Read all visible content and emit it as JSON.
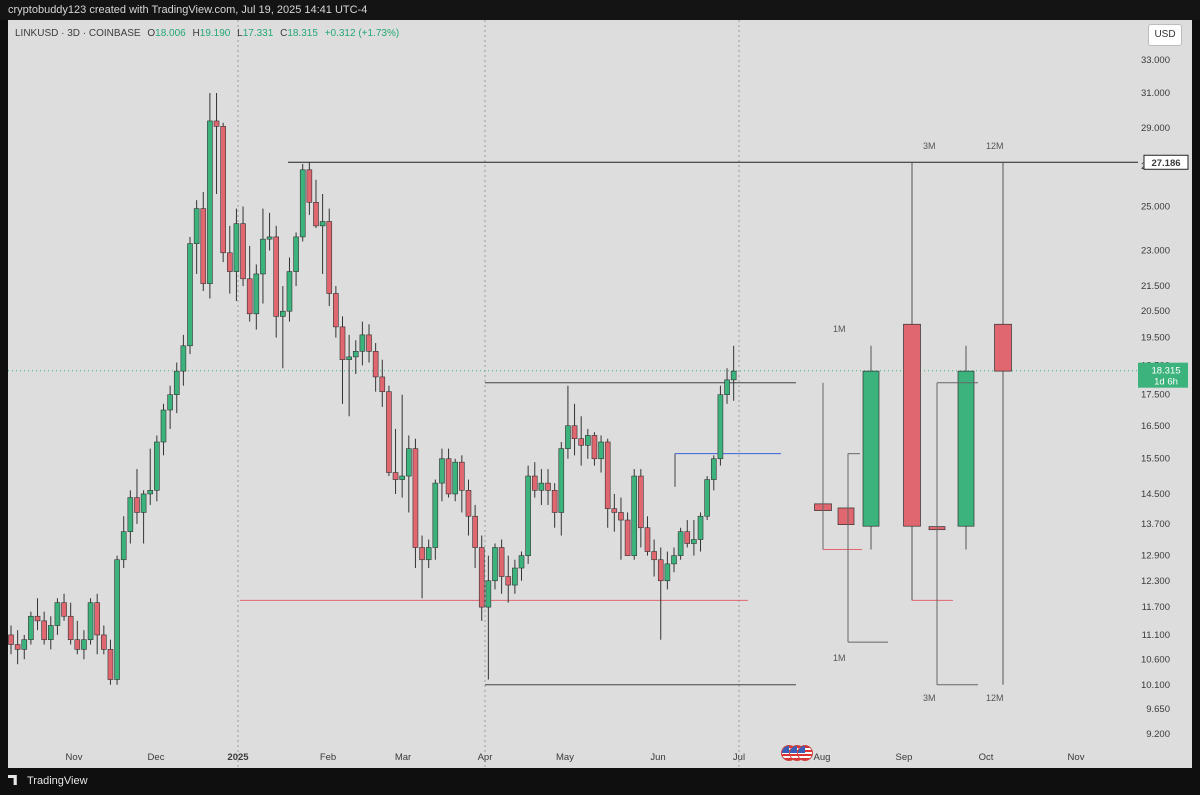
{
  "header": {
    "attribution": "cryptobuddy123 created with TradingView.com, Jul 19, 2025 14:41 UTC-4"
  },
  "legend": {
    "symbol": "LINKUSD · 3D · COINBASE",
    "open_label": "O",
    "open": "18.006",
    "high_label": "H",
    "high": "19.190",
    "low_label": "L",
    "low": "17.331",
    "close_label": "C",
    "close": "18.315",
    "change": "+0.312 (+1.73%)"
  },
  "currency_button": "USD",
  "footer": {
    "brand": "TradingView"
  },
  "colors": {
    "up": "#3cb37d",
    "down": "#e0666f",
    "background": "#dddddd",
    "price_tag": "#3cb37d",
    "resistance_tag": "#ffffff"
  },
  "chart_data": {
    "type": "candlestick",
    "symbol": "LINKUSD",
    "timeframe": "3D",
    "exchange": "COINBASE",
    "y_axis": {
      "scale": "log",
      "ticks": [
        "33.000",
        "31.000",
        "29.000",
        "27.000",
        "25.000",
        "23.000",
        "21.500",
        "20.500",
        "19.500",
        "18.500",
        "17.500",
        "16.500",
        "15.500",
        "14.500",
        "13.700",
        "12.900",
        "12.300",
        "11.700",
        "11.100",
        "10.600",
        "10.100",
        "9.650",
        "9.200"
      ]
    },
    "x_axis": {
      "ticks": [
        "Nov",
        "Dec",
        "2025",
        "Feb",
        "Mar",
        "Apr",
        "May",
        "Jun",
        "Jul",
        "Aug",
        "Sep",
        "Oct",
        "Nov"
      ]
    },
    "price_labels": [
      {
        "value": "27.186",
        "style": "resistance"
      },
      {
        "value": "18.315",
        "style": "last-price"
      }
    ],
    "countdown": "1d 6h",
    "annotations": [
      "1M",
      "1M",
      "3M",
      "3M",
      "12M",
      "12M"
    ],
    "candles": [
      [
        11.1,
        11.3,
        10.7,
        10.9
      ],
      [
        10.9,
        11.2,
        10.5,
        10.8
      ],
      [
        10.8,
        11.1,
        10.6,
        11.0
      ],
      [
        11.0,
        11.6,
        10.9,
        11.5
      ],
      [
        11.5,
        11.9,
        11.2,
        11.4
      ],
      [
        11.4,
        11.6,
        10.9,
        11.0
      ],
      [
        11.0,
        11.5,
        10.8,
        11.3
      ],
      [
        11.3,
        11.9,
        11.1,
        11.8
      ],
      [
        11.8,
        12.0,
        11.4,
        11.5
      ],
      [
        11.5,
        11.8,
        10.9,
        11.0
      ],
      [
        11.0,
        11.4,
        10.7,
        10.8
      ],
      [
        10.8,
        11.2,
        10.6,
        11.0
      ],
      [
        11.0,
        11.9,
        10.9,
        11.8
      ],
      [
        11.8,
        12.0,
        10.7,
        11.1
      ],
      [
        11.1,
        11.3,
        10.7,
        10.8
      ],
      [
        10.8,
        11.0,
        10.1,
        10.2
      ],
      [
        10.2,
        12.9,
        10.1,
        12.8
      ],
      [
        12.8,
        13.9,
        12.6,
        13.5
      ],
      [
        13.5,
        14.6,
        13.2,
        14.4
      ],
      [
        14.4,
        15.2,
        13.7,
        14.0
      ],
      [
        14.0,
        14.6,
        13.2,
        14.5
      ],
      [
        14.5,
        15.8,
        14.2,
        14.6
      ],
      [
        14.6,
        16.2,
        14.3,
        16.0
      ],
      [
        16.0,
        17.2,
        15.6,
        17.0
      ],
      [
        17.0,
        17.8,
        16.4,
        17.5
      ],
      [
        17.5,
        18.6,
        16.9,
        18.3
      ],
      [
        18.3,
        19.6,
        17.8,
        19.2
      ],
      [
        19.2,
        23.6,
        18.9,
        23.3
      ],
      [
        23.3,
        25.3,
        22.0,
        24.9
      ],
      [
        24.9,
        25.7,
        21.3,
        21.6
      ],
      [
        21.6,
        31.0,
        21.0,
        29.4
      ],
      [
        29.4,
        31.0,
        25.6,
        29.1
      ],
      [
        29.1,
        29.3,
        22.5,
        22.9
      ],
      [
        22.9,
        24.1,
        21.2,
        22.1
      ],
      [
        22.1,
        24.9,
        20.9,
        24.2
      ],
      [
        24.2,
        25.0,
        21.5,
        21.8
      ],
      [
        21.8,
        23.2,
        20.1,
        20.4
      ],
      [
        20.4,
        22.4,
        19.8,
        22.0
      ],
      [
        22.0,
        24.9,
        20.8,
        23.5
      ],
      [
        23.5,
        24.7,
        23.0,
        23.6
      ],
      [
        23.6,
        24.1,
        19.5,
        20.3
      ],
      [
        20.3,
        21.5,
        18.4,
        20.5
      ],
      [
        20.5,
        22.7,
        20.1,
        22.1
      ],
      [
        22.1,
        23.8,
        21.5,
        23.6
      ],
      [
        23.6,
        27.1,
        23.4,
        26.8
      ],
      [
        26.8,
        27.2,
        24.6,
        25.2
      ],
      [
        25.2,
        26.3,
        24.0,
        24.1
      ],
      [
        24.1,
        25.6,
        22.0,
        24.3
      ],
      [
        24.3,
        24.9,
        20.7,
        21.2
      ],
      [
        21.2,
        21.5,
        19.5,
        19.9
      ],
      [
        19.9,
        20.3,
        17.2,
        18.7
      ],
      [
        18.7,
        19.6,
        16.8,
        18.8
      ],
      [
        18.8,
        19.4,
        18.2,
        19.0
      ],
      [
        19.0,
        20.1,
        18.5,
        19.6
      ],
      [
        19.6,
        20.0,
        18.6,
        19.0
      ],
      [
        19.0,
        19.3,
        17.6,
        18.1
      ],
      [
        18.1,
        18.7,
        17.1,
        17.6
      ],
      [
        17.6,
        17.8,
        15.0,
        15.1
      ],
      [
        15.1,
        16.4,
        14.5,
        14.9
      ],
      [
        14.9,
        17.5,
        14.4,
        15.0
      ],
      [
        15.0,
        16.2,
        14.0,
        15.8
      ],
      [
        15.8,
        16.1,
        12.6,
        13.1
      ],
      [
        13.1,
        13.4,
        11.9,
        12.8
      ],
      [
        12.8,
        13.3,
        12.6,
        13.1
      ],
      [
        13.1,
        14.9,
        12.8,
        14.8
      ],
      [
        14.8,
        15.8,
        14.3,
        15.5
      ],
      [
        15.5,
        15.8,
        14.4,
        14.5
      ],
      [
        14.5,
        15.5,
        14.3,
        15.4
      ],
      [
        15.4,
        15.6,
        14.0,
        14.6
      ],
      [
        14.6,
        14.9,
        13.4,
        13.9
      ],
      [
        13.9,
        14.2,
        12.6,
        13.1
      ],
      [
        13.1,
        13.4,
        11.4,
        11.7
      ],
      [
        11.7,
        12.9,
        10.2,
        12.3
      ],
      [
        12.3,
        13.2,
        12.1,
        13.1
      ],
      [
        13.1,
        13.3,
        12.0,
        12.4
      ],
      [
        12.4,
        12.9,
        11.8,
        12.2
      ],
      [
        12.2,
        12.8,
        12.0,
        12.6
      ],
      [
        12.6,
        13.0,
        12.3,
        12.9
      ],
      [
        12.9,
        15.3,
        12.7,
        15.0
      ],
      [
        15.0,
        15.4,
        14.4,
        14.6
      ],
      [
        14.6,
        15.2,
        14.2,
        14.8
      ],
      [
        14.8,
        15.2,
        14.2,
        14.6
      ],
      [
        14.6,
        14.8,
        13.6,
        14.0
      ],
      [
        14.0,
        16.0,
        13.4,
        15.8
      ],
      [
        15.8,
        17.8,
        15.5,
        16.5
      ],
      [
        16.5,
        17.2,
        15.6,
        16.1
      ],
      [
        16.1,
        16.8,
        15.3,
        15.9
      ],
      [
        15.9,
        16.4,
        15.5,
        16.2
      ],
      [
        16.2,
        16.3,
        15.3,
        15.5
      ],
      [
        15.5,
        16.2,
        15.1,
        16.0
      ],
      [
        16.0,
        16.1,
        13.6,
        14.1
      ],
      [
        14.1,
        14.5,
        13.5,
        14.0
      ],
      [
        14.0,
        14.4,
        12.8,
        13.8
      ],
      [
        13.8,
        14.0,
        12.9,
        12.9
      ],
      [
        12.9,
        15.2,
        12.8,
        15.0
      ],
      [
        15.0,
        15.2,
        13.1,
        13.6
      ],
      [
        13.6,
        13.9,
        12.9,
        13.0
      ],
      [
        13.0,
        13.3,
        12.4,
        12.8
      ],
      [
        12.8,
        13.1,
        11.0,
        12.3
      ],
      [
        12.3,
        13.0,
        12.1,
        12.7
      ],
      [
        12.7,
        13.1,
        12.5,
        12.9
      ],
      [
        12.9,
        13.6,
        12.8,
        13.5
      ],
      [
        13.5,
        13.8,
        13.1,
        13.2
      ],
      [
        13.2,
        13.8,
        12.9,
        13.3
      ],
      [
        13.3,
        14.0,
        13.0,
        13.9
      ],
      [
        13.9,
        15.0,
        13.8,
        14.9
      ],
      [
        14.9,
        15.6,
        14.6,
        15.5
      ],
      [
        15.5,
        17.8,
        15.3,
        17.5
      ],
      [
        17.5,
        18.4,
        17.2,
        18.0
      ],
      [
        18.0,
        19.2,
        17.3,
        18.3
      ]
    ],
    "projection_candles": [
      {
        "label": "1M",
        "o": 14.23,
        "h": 14.23,
        "l": 14.05,
        "c": 14.05
      },
      {
        "label": "1M",
        "o": 14.12,
        "h": 14.12,
        "l": 13.68,
        "c": 13.68
      },
      {
        "label": "1M",
        "o": 13.64,
        "h": 19.2,
        "l": 13.05,
        "c": 18.3
      },
      {
        "label": "3M",
        "o": 20.0,
        "h": 27.186,
        "l": 11.85,
        "c": 13.64
      },
      {
        "label": "3M",
        "o": 13.63,
        "h": 13.63,
        "l": 13.55,
        "c": 13.55
      },
      {
        "label": "3M",
        "o": 13.64,
        "h": 19.2,
        "l": 13.05,
        "c": 18.3
      },
      {
        "label": "12M",
        "o": 20.0,
        "h": 27.186,
        "l": 10.1,
        "c": 18.3
      }
    ]
  }
}
